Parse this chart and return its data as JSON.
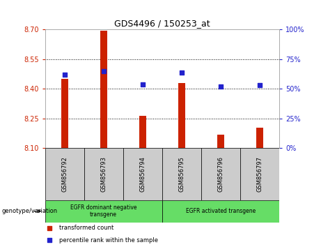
{
  "title": "GDS4496 / 150253_at",
  "samples": [
    "GSM856792",
    "GSM856793",
    "GSM856794",
    "GSM856795",
    "GSM856796",
    "GSM856797"
  ],
  "bar_values": [
    8.45,
    8.695,
    8.265,
    8.43,
    8.17,
    8.205
  ],
  "bar_base": 8.1,
  "percentile_values": [
    62,
    65,
    54,
    64,
    52,
    53
  ],
  "left_yticks": [
    8.1,
    8.25,
    8.4,
    8.55,
    8.7
  ],
  "left_ylim": [
    8.1,
    8.7
  ],
  "right_yticks": [
    0,
    25,
    50,
    75,
    100
  ],
  "right_ylim": [
    0,
    100
  ],
  "bar_color": "#cc2200",
  "dot_color": "#2222cc",
  "title_color": "#000000",
  "left_tick_color": "#cc2200",
  "right_tick_color": "#2222cc",
  "group1_label": "EGFR dominant negative\ntransgene",
  "group2_label": "EGFR activated transgene",
  "group1_indices": [
    0,
    1,
    2
  ],
  "group2_indices": [
    3,
    4,
    5
  ],
  "group_bg_color": "#66dd66",
  "sample_bg_color": "#cccccc",
  "legend_red_label": "transformed count",
  "legend_blue_label": "percentile rank within the sample",
  "genotype_label": "genotype/variation"
}
